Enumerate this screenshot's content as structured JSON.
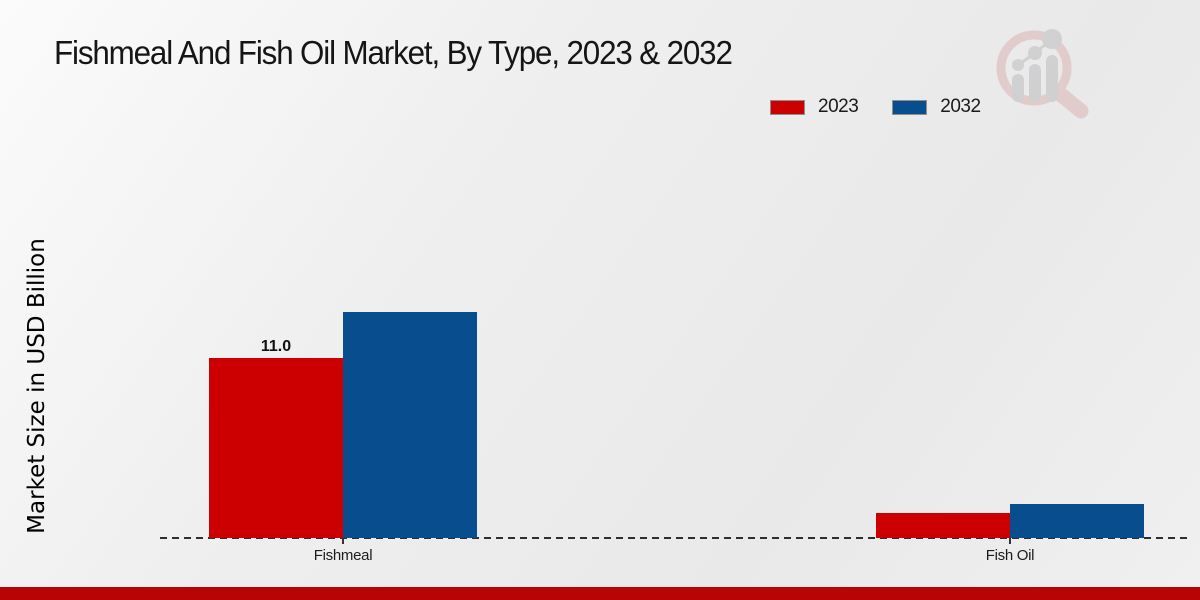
{
  "title": "Fishmeal And Fish Oil Market, By Type, 2023 & 2032",
  "y_axis_label": "Market Size in USD Billion",
  "chart_data": {
    "type": "bar",
    "categories": [
      "Fishmeal",
      "Fish Oil"
    ],
    "series": [
      {
        "name": "2023",
        "color": "#cc0000",
        "values": [
          11.0,
          1.5
        ],
        "value_labels": [
          "11.0",
          ""
        ]
      },
      {
        "name": "2032",
        "color": "#084d8e",
        "values": [
          13.8,
          2.1
        ],
        "value_labels": [
          "",
          ""
        ]
      }
    ],
    "title": "Fishmeal And Fish Oil Market, By Type, 2023 & 2032",
    "xlabel": "",
    "ylabel": "Market Size in USD Billion",
    "ylim": [
      0,
      15
    ],
    "grid": false,
    "legend_position": "top-right",
    "x_axis_style": "dashed",
    "bar_label_shown": "11.0"
  },
  "colors": {
    "series_2023": "#cc0000",
    "series_2032": "#084d8e",
    "footer_strip": "#b80404",
    "logo_ring": "#d9a7a7",
    "logo_bars": "#b3b3b6"
  }
}
